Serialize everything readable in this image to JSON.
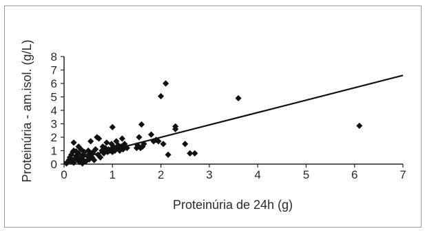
{
  "chart_data": {
    "type": "scatter",
    "xlabel": "Proteinúria de 24h (g)",
    "ylabel": "Proteinúria - am.isol. (g/L)",
    "xlim": [
      0,
      7
    ],
    "ylim": [
      0,
      8
    ],
    "xticks": [
      "0",
      "1",
      "2",
      "3",
      "4",
      "5",
      "6",
      "7"
    ],
    "yticks": [
      "0",
      "1",
      "2",
      "3",
      "4",
      "5",
      "6",
      "7",
      "8"
    ],
    "grid": false,
    "legend": "none",
    "marker": "diamond",
    "colors": {
      "marker": "#111111",
      "line": "#111111",
      "axis": "#222222",
      "text": "#2a2a2a"
    },
    "points": [
      [
        0.05,
        0.05
      ],
      [
        0.08,
        0.15
      ],
      [
        0.1,
        0.3
      ],
      [
        0.12,
        0.5
      ],
      [
        0.15,
        0.2
      ],
      [
        0.15,
        0.7
      ],
      [
        0.18,
        0.9
      ],
      [
        0.2,
        0.1
      ],
      [
        0.2,
        1.0
      ],
      [
        0.2,
        1.6
      ],
      [
        0.22,
        0.4
      ],
      [
        0.25,
        0.6
      ],
      [
        0.25,
        0.95
      ],
      [
        0.28,
        0.3
      ],
      [
        0.3,
        0.8
      ],
      [
        0.3,
        1.3
      ],
      [
        0.32,
        0.15
      ],
      [
        0.35,
        0.5
      ],
      [
        0.35,
        1.1
      ],
      [
        0.38,
        0.05
      ],
      [
        0.4,
        0.7
      ],
      [
        0.4,
        0.3
      ],
      [
        0.42,
        0.9
      ],
      [
        0.45,
        0.2
      ],
      [
        0.48,
        0.6
      ],
      [
        0.5,
        1.0
      ],
      [
        0.52,
        0.35
      ],
      [
        0.55,
        1.7
      ],
      [
        0.55,
        0.8
      ],
      [
        0.58,
        0.5
      ],
      [
        0.6,
        0.9
      ],
      [
        0.62,
        0.3
      ],
      [
        0.65,
        1.1
      ],
      [
        0.68,
        2.0
      ],
      [
        0.7,
        0.7
      ],
      [
        0.72,
        1.9
      ],
      [
        0.75,
        0.5
      ],
      [
        0.78,
        1.0
      ],
      [
        0.8,
        1.3
      ],
      [
        0.82,
        0.8
      ],
      [
        0.85,
        1.2
      ],
      [
        0.88,
        1.6
      ],
      [
        0.9,
        0.9
      ],
      [
        0.92,
        1.1
      ],
      [
        0.95,
        1.0
      ],
      [
        0.98,
        1.5
      ],
      [
        1.0,
        1.2
      ],
      [
        1.0,
        0.9
      ],
      [
        1.0,
        2.75
      ],
      [
        1.02,
        1.3
      ],
      [
        1.05,
        1.0
      ],
      [
        1.08,
        1.7
      ],
      [
        1.1,
        1.2
      ],
      [
        1.12,
        1.4
      ],
      [
        1.15,
        1.0
      ],
      [
        1.18,
        1.3
      ],
      [
        1.2,
        1.9
      ],
      [
        1.22,
        1.1
      ],
      [
        1.25,
        1.5
      ],
      [
        1.3,
        1.2
      ],
      [
        1.5,
        1.2
      ],
      [
        1.52,
        1.4
      ],
      [
        1.55,
        2.0
      ],
      [
        1.58,
        1.2
      ],
      [
        1.6,
        2.95
      ],
      [
        1.62,
        1.3
      ],
      [
        1.65,
        1.5
      ],
      [
        1.8,
        2.2
      ],
      [
        1.85,
        1.7
      ],
      [
        1.9,
        1.8
      ],
      [
        1.95,
        1.7
      ],
      [
        2.0,
        5.05
      ],
      [
        2.05,
        1.5
      ],
      [
        2.1,
        6.0
      ],
      [
        2.15,
        0.7
      ],
      [
        2.3,
        2.6
      ],
      [
        2.3,
        2.8
      ],
      [
        2.5,
        1.5
      ],
      [
        2.6,
        0.8
      ],
      [
        2.7,
        0.8
      ],
      [
        3.6,
        4.9
      ],
      [
        6.1,
        2.85
      ]
    ],
    "trendline": {
      "x": [
        0,
        7
      ],
      "y": [
        0.15,
        6.6
      ]
    }
  }
}
